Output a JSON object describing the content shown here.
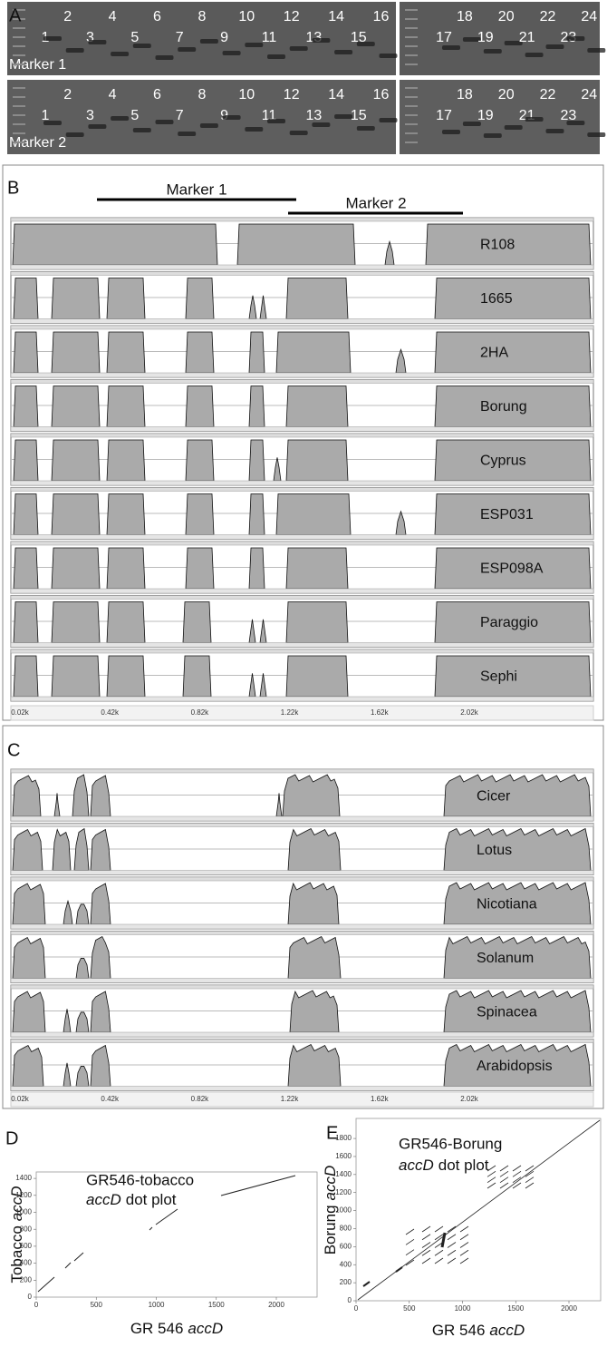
{
  "panel_a": {
    "label": "A",
    "gel_1": {
      "marker": "Marker 1",
      "lanes": [
        1,
        2,
        3,
        4,
        5,
        6,
        7,
        8,
        9,
        10,
        11,
        12,
        13,
        14,
        15,
        16,
        17,
        18,
        19,
        20,
        21,
        22,
        23,
        24
      ]
    },
    "gel_2": {
      "marker": "Marker 2",
      "lanes": [
        1,
        2,
        3,
        4,
        5,
        6,
        7,
        8,
        9,
        10,
        11,
        12,
        13,
        14,
        15,
        16,
        17,
        18,
        19,
        20,
        21,
        22,
        23,
        24
      ]
    }
  },
  "panel_b": {
    "label": "B",
    "markers": [
      "Marker 1",
      "Marker 2"
    ],
    "tracks": [
      "R108",
      "1665",
      "2HA",
      "Borung",
      "Cyprus",
      "ESP031",
      "ESP098A",
      "Paraggio",
      "Sephi"
    ],
    "axis_ticks": [
      "0.02k",
      "0.42k",
      "0.82k",
      "1.22k",
      "1.62k",
      "2.02k"
    ]
  },
  "panel_c": {
    "label": "C",
    "tracks": [
      "Cicer",
      "Lotus",
      "Nicotiana",
      "Solanum",
      "Spinacea",
      "Arabidopsis"
    ],
    "axis_ticks": [
      "0.02k",
      "0.42k",
      "0.82k",
      "1.22k",
      "1.62k",
      "2.02k"
    ]
  },
  "panel_d": {
    "label": "D",
    "title": "GR546-tobacco",
    "title_gene": "accD",
    "title_rest": "dot plot",
    "y_label": "Tobacco",
    "y_gene": "accD",
    "x_label": "GR 546",
    "x_gene": "accD",
    "yticks": [
      0,
      200,
      400,
      600,
      800,
      1000,
      1200,
      1400
    ],
    "xticks": [
      0,
      500,
      1000,
      1500,
      2000
    ]
  },
  "panel_e": {
    "label": "E",
    "title": "GR546-Borung",
    "title_gene": "accD",
    "title_rest": "dot plot",
    "y_label": "Borung",
    "y_gene": "accD",
    "x_label": "GR 546",
    "x_gene": "accD",
    "yticks": [
      0,
      200,
      400,
      600,
      800,
      1000,
      1200,
      1400,
      1600,
      1800
    ],
    "xticks": [
      0,
      500,
      1000,
      1500,
      2000
    ]
  }
}
